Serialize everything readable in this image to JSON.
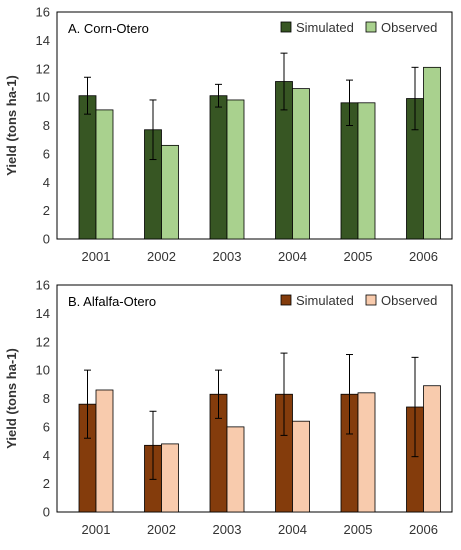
{
  "chart_data": [
    {
      "type": "bar",
      "title": "A. Corn-Otero",
      "ylabel": "Yield (tons ha-1)",
      "xlabel": "",
      "ylim": [
        0,
        16
      ],
      "yticks": [
        0,
        2,
        4,
        6,
        8,
        10,
        12,
        14,
        16
      ],
      "categories": [
        "2001",
        "2002",
        "2003",
        "2004",
        "2005",
        "2006"
      ],
      "legend_position": "top-right",
      "grid": false,
      "series": [
        {
          "name": "Simulated",
          "color": "#375623",
          "values": [
            10.1,
            7.7,
            10.1,
            11.1,
            9.6,
            9.9
          ],
          "error": [
            1.3,
            2.1,
            0.8,
            2.0,
            1.6,
            2.2
          ]
        },
        {
          "name": "Observed",
          "color": "#a9d18e",
          "values": [
            9.1,
            6.6,
            9.8,
            10.6,
            9.6,
            12.1
          ]
        }
      ]
    },
    {
      "type": "bar",
      "title": "B. Alfalfa-Otero",
      "ylabel": "Yield (tons ha-1)",
      "xlabel": "",
      "ylim": [
        0,
        16
      ],
      "yticks": [
        0,
        2,
        4,
        6,
        8,
        10,
        12,
        14,
        16
      ],
      "categories": [
        "2001",
        "2002",
        "2003",
        "2004",
        "2005",
        "2006"
      ],
      "legend_position": "top-right",
      "grid": false,
      "series": [
        {
          "name": "Simulated",
          "color": "#843c0c",
          "values": [
            7.6,
            4.7,
            8.3,
            8.3,
            8.3,
            7.4
          ],
          "error": [
            2.4,
            2.4,
            1.7,
            2.9,
            2.8,
            3.5
          ]
        },
        {
          "name": "Observed",
          "color": "#f8cbad",
          "values": [
            8.6,
            4.8,
            6.0,
            6.4,
            8.4,
            8.9
          ]
        }
      ]
    }
  ]
}
